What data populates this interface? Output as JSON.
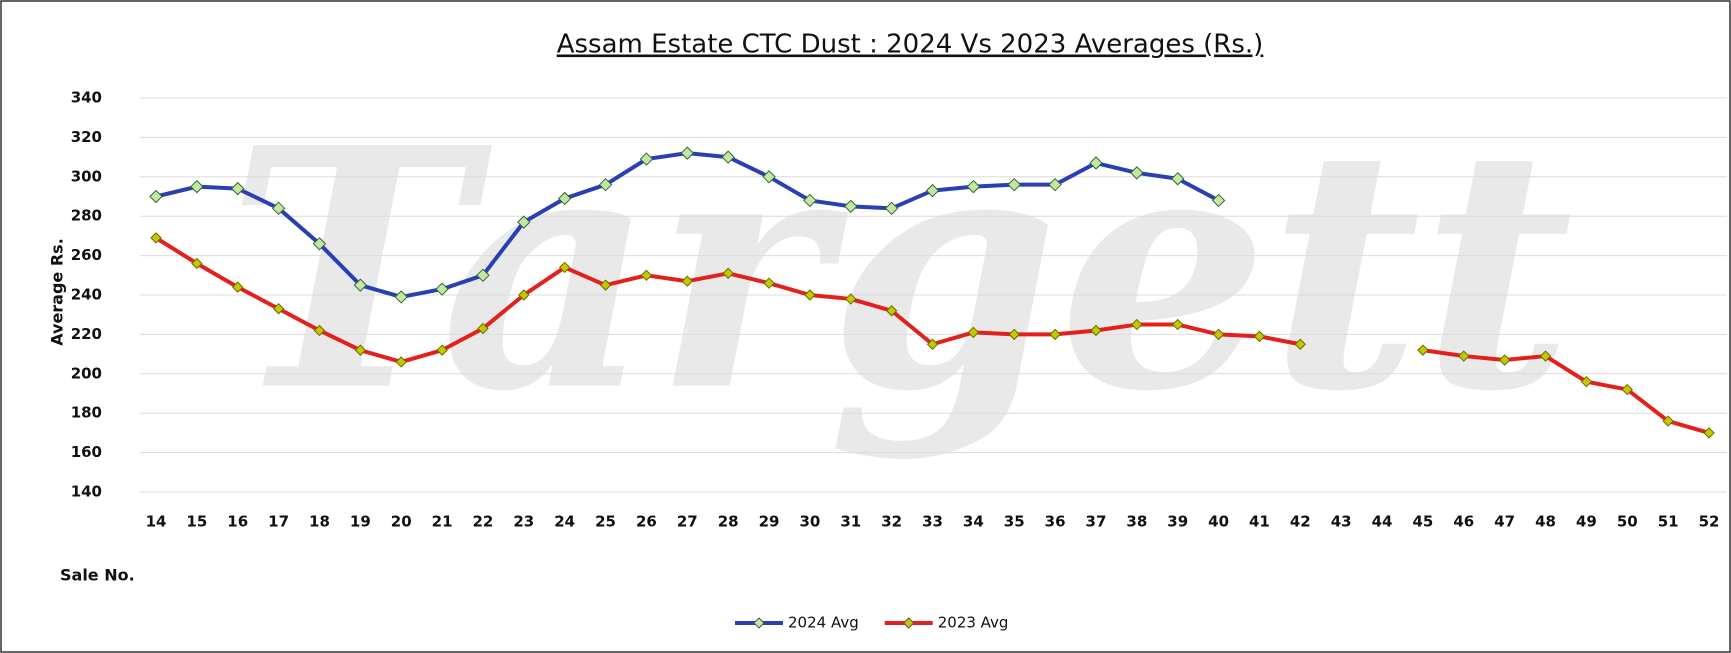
{
  "chart_data": {
    "type": "line",
    "title": "Assam Estate CTC Dust : 2024 Vs 2023 Averages (Rs.)",
    "watermark": "Targett",
    "x_label": "Sale No.",
    "y_label": "Average Rs.",
    "categories": [
      "14",
      "15",
      "16",
      "17",
      "18",
      "19",
      "20",
      "21",
      "22",
      "23",
      "24",
      "25",
      "26",
      "27",
      "28",
      "29",
      "30",
      "31",
      "32",
      "33",
      "34",
      "35",
      "36",
      "37",
      "38",
      "39",
      "40",
      "41",
      "42",
      "43",
      "44",
      "45",
      "46",
      "47",
      "48",
      "49",
      "50",
      "51",
      "52"
    ],
    "series": [
      {
        "name": "2024 Avg",
        "color": "#2b3fb5",
        "marker_color": "#c8e6a0",
        "values": [
          290,
          295,
          294,
          284,
          266,
          245,
          239,
          243,
          250,
          277,
          289,
          296,
          309,
          312,
          310,
          300,
          288,
          285,
          284,
          293,
          295,
          296,
          296,
          307,
          302,
          299,
          288,
          null,
          null,
          null,
          null,
          null,
          null,
          null,
          null,
          null,
          null,
          null,
          null
        ]
      },
      {
        "name": "2023 Avg",
        "color": "#e4201c",
        "marker_color": "#c3c800",
        "values": [
          269,
          256,
          244,
          233,
          222,
          212,
          206,
          212,
          223,
          240,
          254,
          245,
          250,
          247,
          251,
          246,
          240,
          238,
          232,
          215,
          221,
          220,
          220,
          222,
          225,
          225,
          220,
          219,
          215,
          null,
          null,
          212,
          209,
          207,
          209,
          196,
          192,
          176,
          170
        ]
      }
    ],
    "ylim": [
      140,
      340
    ],
    "yticks": [
      140,
      160,
      180,
      200,
      220,
      240,
      260,
      280,
      300,
      320,
      340
    ],
    "grid": true,
    "legend": "bottom"
  }
}
